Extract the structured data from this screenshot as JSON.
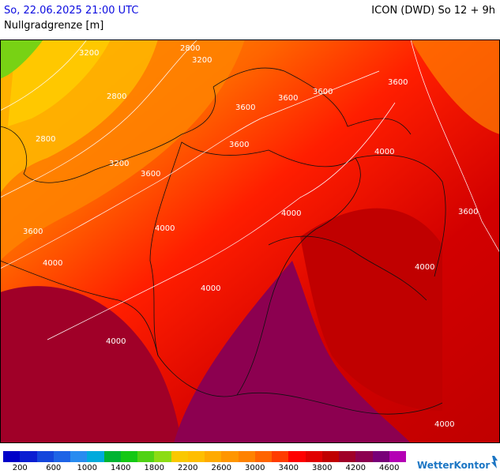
{
  "header": {
    "datetime": "So, 22.06.2025 21:00 UTC",
    "model_run": "ICON (DWD) So 12 + 9h",
    "parameter": "Nullgradgrenze [m]"
  },
  "map": {
    "contour_labels": [
      "3200",
      "2800",
      "3200",
      "2800",
      "2800",
      "3200",
      "3600",
      "3600",
      "3600",
      "3600",
      "3600",
      "4000",
      "3600",
      "3600",
      "4000",
      "4000",
      "3600",
      "4000",
      "4000",
      "4000",
      "4000",
      "4000"
    ]
  },
  "legend": {
    "colors": [
      "#0000c8",
      "#0a1ed2",
      "#1446dc",
      "#1e64e6",
      "#288cf0",
      "#00aadc",
      "#00b432",
      "#14c814",
      "#50d214",
      "#8cdc14",
      "#fac800",
      "#ffbe00",
      "#ffaa00",
      "#ff9600",
      "#ff8200",
      "#ff6400",
      "#ff3c00",
      "#ff0000",
      "#e10000",
      "#c00000",
      "#a00028",
      "#8c0050",
      "#780078",
      "#b400b4"
    ],
    "ticks": [
      "200",
      "600",
      "1000",
      "1400",
      "1800",
      "2200",
      "2600",
      "3000",
      "3400",
      "3800",
      "4200",
      "4600"
    ]
  },
  "brand": {
    "name": "WetterKontor"
  }
}
